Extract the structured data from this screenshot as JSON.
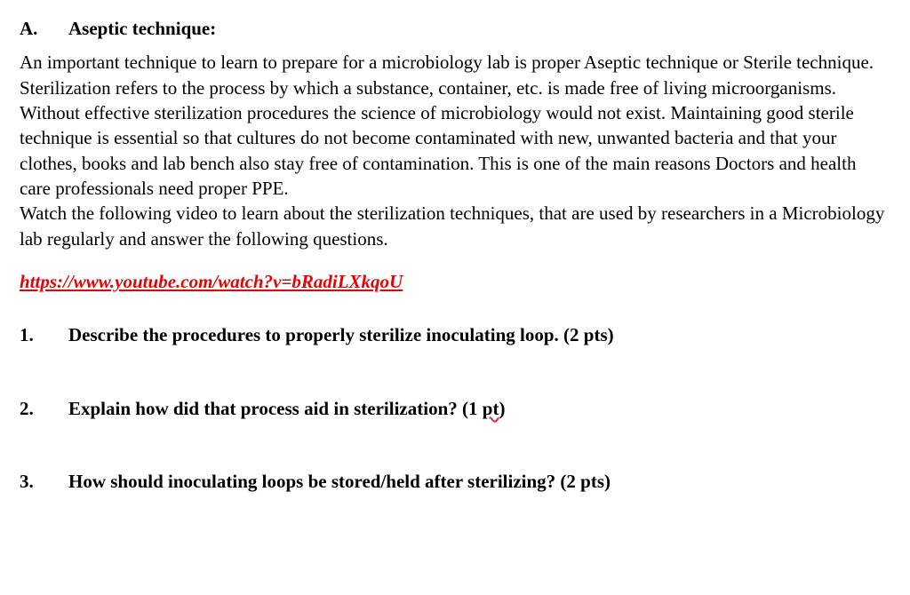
{
  "section": {
    "letter": "A.",
    "title": "Aseptic technique:"
  },
  "paragraph": "An important technique to learn to prepare for a microbiology lab is proper Aseptic technique or Sterile technique. Sterilization refers to the process by which a substance, container, etc. is made free of living microorganisms. Without effective sterilization procedures the science of microbiology would not exist. Maintaining good sterile technique is essential so that cultures do not become contaminated with new, unwanted bacteria and that your clothes, books and lab bench also stay free of contamination. This is one of the main reasons Doctors and health care professionals need proper PPE.",
  "paragraph2": "Watch the following video to learn about the sterilization techniques, that are used by researchers in a Microbiology lab regularly and answer the following questions.",
  "link": "https://www.youtube.com/watch?v=bRadiLXkqoU",
  "questions": {
    "q1": {
      "num": "1.",
      "text": "Describe the procedures to properly sterilize inoculating loop. (2 pts)"
    },
    "q2": {
      "num": "2.",
      "text_pre": "Explain how did that process aid in sterilization? (1 ",
      "wavy": "pt",
      "text_post": ")"
    },
    "q3": {
      "num": "3.",
      "text": "How should inoculating loops be stored/held after sterilizing? (2 pts)"
    }
  },
  "colors": {
    "text": "#000000",
    "link": "#ee0000",
    "background": "#ffffff",
    "wavy_underline": "#cc3333"
  },
  "typography": {
    "font_family": "Times New Roman",
    "body_fontsize": 21,
    "heading_weight": "bold"
  }
}
